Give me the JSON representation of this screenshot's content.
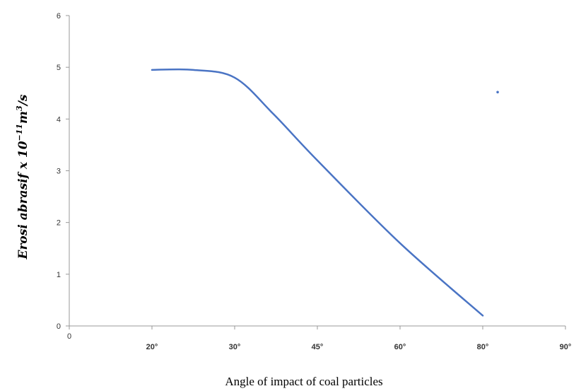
{
  "chart_data": {
    "type": "line",
    "xlabel": "Angle of impact of coal particles",
    "ylabel_parts": {
      "main": "Erosi abrasif x 10",
      "exp1": "−11",
      "unit": "m",
      "exp2": "3",
      "tail": "/s"
    },
    "ylim": [
      0,
      6
    ],
    "y_ticks": [
      "0",
      "1",
      "2",
      "3",
      "4",
      "5",
      "6"
    ],
    "x_categories": [
      "0",
      "20°",
      "30°",
      "45°",
      "60°",
      "80°",
      "90°"
    ],
    "series": [
      {
        "x": [
          "20°",
          "25°",
          "30°",
          "37°",
          "45°",
          "60°",
          "80°"
        ],
        "values": [
          4.95,
          4.95,
          4.8,
          4.1,
          3.2,
          1.6,
          0.2
        ]
      }
    ],
    "stray_point": {
      "x_between": [
        "80°",
        "90°"
      ],
      "fraction": 0.18,
      "y": 4.52
    },
    "grid": false,
    "colors": {
      "line": "#4a74c4",
      "axis": "#999999"
    }
  }
}
